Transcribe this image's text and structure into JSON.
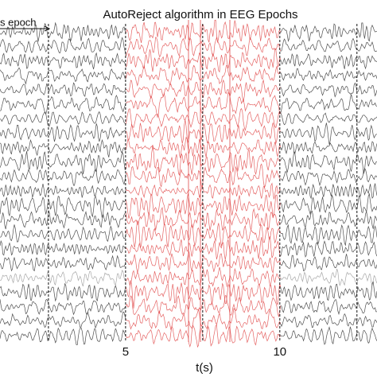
{
  "chart_data": {
    "type": "line",
    "title": "AutoReject algorithm in EEG Epochs",
    "xlabel": "t(s)",
    "annotation": "s epoch",
    "xlim": [
      0.93,
      13.15
    ],
    "xticks": [
      5,
      10
    ],
    "epoch_boundaries": [
      2.5,
      5,
      7.5,
      10,
      12.5
    ],
    "rejected_epochs": [
      [
        5,
        7.5
      ],
      [
        7.5,
        10
      ]
    ],
    "trace_color": "#222222",
    "rejected_color": "#e04848"
  }
}
